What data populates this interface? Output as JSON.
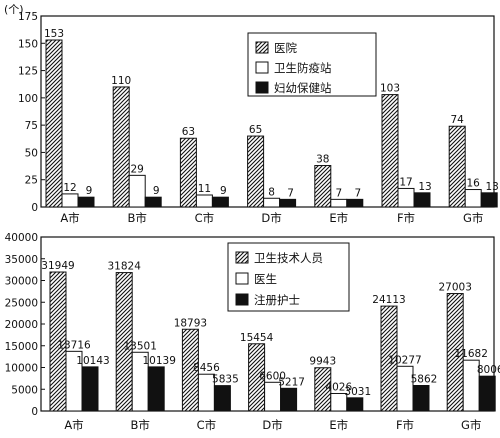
{
  "chart_data": [
    {
      "type": "bar",
      "unit_label": "(个)",
      "categories": [
        "A市",
        "B市",
        "C市",
        "D市",
        "E市",
        "F市",
        "G市"
      ],
      "ylim": [
        0,
        175
      ],
      "y_ticks": [
        "0",
        "25",
        "50",
        "75",
        "100",
        "125",
        "150",
        "175"
      ],
      "legend_position": "top-right",
      "series": [
        {
          "name": "医院",
          "values": [
            153,
            110,
            63,
            65,
            38,
            103,
            74
          ],
          "fill": "hatch"
        },
        {
          "name": "卫生防疫站",
          "values": [
            12,
            29,
            11,
            8,
            7,
            17,
            16
          ],
          "fill": "#ffffff"
        },
        {
          "name": "妇幼保健站",
          "values": [
            9,
            9,
            9,
            7,
            7,
            13,
            13
          ],
          "fill": "#111111"
        }
      ]
    },
    {
      "type": "bar",
      "categories": [
        "A市",
        "B市",
        "C市",
        "D市",
        "E市",
        "F市",
        "G市"
      ],
      "ylim": [
        0,
        40000
      ],
      "y_ticks": [
        "0",
        "5000",
        "10000",
        "15000",
        "20000",
        "25000",
        "30000",
        "35000",
        "40000"
      ],
      "legend_position": "top-right",
      "series": [
        {
          "name": "卫生技术人员",
          "values": [
            31949,
            31824,
            18793,
            15454,
            9943,
            24113,
            27003
          ],
          "fill": "hatch"
        },
        {
          "name": "医生",
          "values": [
            13716,
            13501,
            8456,
            6600,
            4026,
            10277,
            11682
          ],
          "fill": "#ffffff"
        },
        {
          "name": "注册护士",
          "values": [
            10143,
            10139,
            5835,
            5217,
            3031,
            5862,
            8006
          ],
          "fill": "#111111"
        }
      ]
    }
  ]
}
